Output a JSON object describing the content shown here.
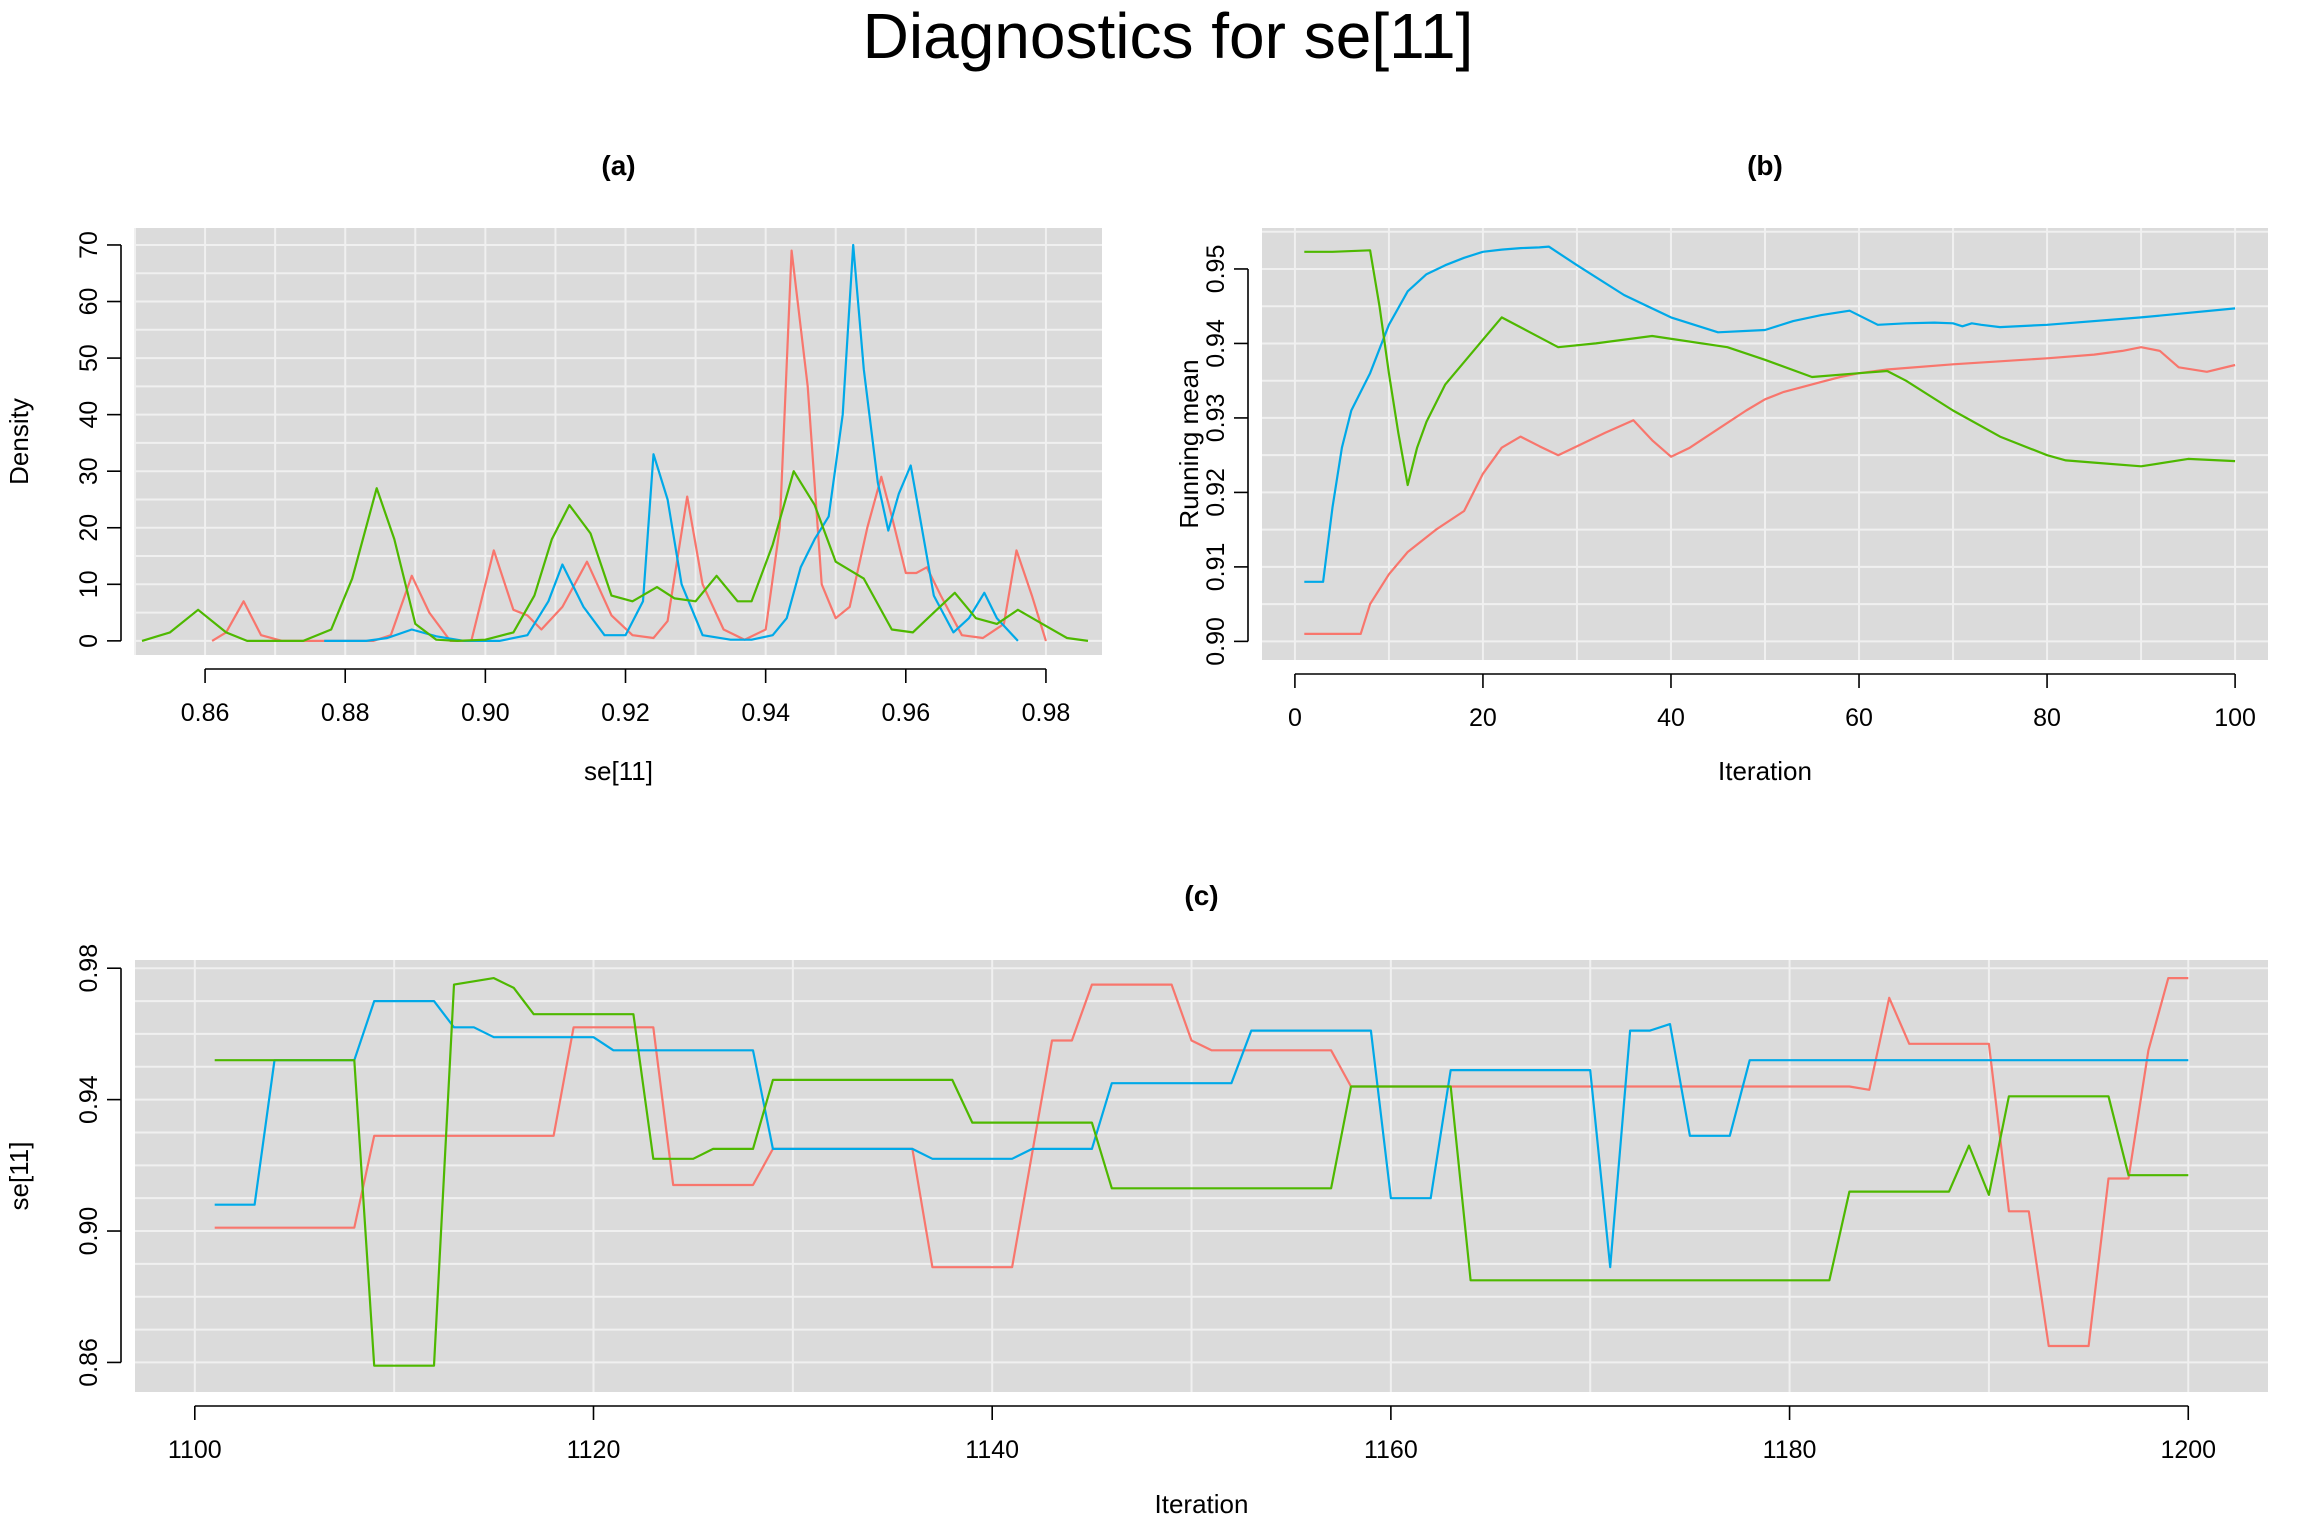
{
  "title": "Diagnostics for se[11]",
  "colors": {
    "chain1": "#F8766D",
    "chain2": "#00A9E8",
    "chain3": "#4EB800",
    "panel_bg": "#DBDBDB",
    "grid": "#F0F0F0"
  },
  "chart_data": [
    {
      "id": "a",
      "type": "line",
      "title": "(a)",
      "xlabel": "se[11]",
      "ylabel": "Density",
      "xlim": [
        0.85,
        0.988
      ],
      "ylim": [
        -2.5,
        73
      ],
      "xticks": [
        0.86,
        0.88,
        0.9,
        0.92,
        0.94,
        0.96,
        0.98
      ],
      "xtick_labels": [
        "0.86",
        "0.88",
        "0.90",
        "0.92",
        "0.94",
        "0.96",
        "0.98"
      ],
      "yticks": [
        0,
        10,
        20,
        30,
        40,
        50,
        60,
        70
      ],
      "ytick_labels": [
        "0",
        "10",
        "20",
        "30",
        "40",
        "50",
        "60",
        "70"
      ],
      "series": [
        {
          "color": "#F8766D",
          "x": [
            0.861,
            0.863,
            0.8655,
            0.868,
            0.871,
            0.875,
            0.88,
            0.884,
            0.8865,
            0.8895,
            0.892,
            0.895,
            0.898,
            0.9012,
            0.904,
            0.906,
            0.908,
            0.911,
            0.9145,
            0.918,
            0.921,
            0.924,
            0.926,
            0.9288,
            0.931,
            0.934,
            0.937,
            0.94,
            0.942,
            0.9437,
            0.946,
            0.948,
            0.95,
            0.952,
            0.9545,
            0.9565,
            0.958,
            0.96,
            0.9615,
            0.963,
            0.965,
            0.968,
            0.971,
            0.974,
            0.9758,
            0.978,
            0.98
          ],
          "y": [
            0,
            1.5,
            7,
            1,
            0,
            0,
            0,
            0,
            1,
            11.5,
            5,
            0,
            0,
            16,
            5.5,
            4.5,
            2,
            6,
            14,
            4.5,
            1,
            0.5,
            3.5,
            25.5,
            10,
            2,
            0.2,
            2,
            20,
            69,
            45,
            10,
            4,
            6,
            20,
            29,
            22,
            12,
            12,
            13,
            8,
            1,
            0.5,
            3,
            16,
            8,
            0
          ]
        },
        {
          "color": "#00A9E8",
          "x": [
            0.877,
            0.883,
            0.886,
            0.8895,
            0.893,
            0.897,
            0.902,
            0.906,
            0.909,
            0.911,
            0.914,
            0.917,
            0.92,
            0.9225,
            0.924,
            0.926,
            0.928,
            0.931,
            0.935,
            0.938,
            0.941,
            0.943,
            0.945,
            0.947,
            0.949,
            0.951,
            0.9525,
            0.954,
            0.956,
            0.9575,
            0.959,
            0.9607,
            0.962,
            0.964,
            0.9668,
            0.969,
            0.9712,
            0.973,
            0.976
          ],
          "y": [
            0,
            0,
            0.5,
            2,
            0.8,
            0,
            0,
            1,
            7,
            13.5,
            6,
            1,
            1,
            7,
            33,
            25,
            10,
            1,
            0.2,
            0.2,
            1,
            4,
            13,
            18,
            22,
            40,
            70,
            48,
            28,
            19.5,
            26,
            31,
            22,
            8,
            1.5,
            4,
            8.5,
            4,
            0
          ]
        },
        {
          "color": "#4EB800",
          "x": [
            0.851,
            0.855,
            0.859,
            0.863,
            0.866,
            0.87,
            0.874,
            0.878,
            0.881,
            0.8845,
            0.887,
            0.89,
            0.893,
            0.896,
            0.9,
            0.904,
            0.907,
            0.9095,
            0.912,
            0.915,
            0.918,
            0.921,
            0.9245,
            0.927,
            0.93,
            0.933,
            0.936,
            0.938,
            0.941,
            0.944,
            0.947,
            0.95,
            0.954,
            0.958,
            0.961,
            0.964,
            0.967,
            0.97,
            0.973,
            0.976,
            0.9795,
            0.983,
            0.986
          ],
          "y": [
            0,
            1.5,
            5.5,
            1.5,
            0,
            0,
            0,
            2,
            11,
            27,
            18,
            3,
            0.2,
            0,
            0.2,
            1.5,
            8,
            18,
            24,
            19,
            8,
            7,
            9.5,
            7.5,
            7,
            11.5,
            7,
            7,
            17,
            30,
            24,
            14,
            11,
            2,
            1.5,
            5,
            8.5,
            4,
            3,
            5.5,
            3,
            0.5,
            0
          ]
        }
      ]
    },
    {
      "id": "b",
      "type": "line",
      "title": "(b)",
      "xlabel": "Iteration",
      "ylabel": "Running mean",
      "xlim": [
        -3.5,
        103.5
      ],
      "ylim": [
        0.8975,
        0.9555
      ],
      "xticks": [
        0,
        20,
        40,
        60,
        80,
        100
      ],
      "xtick_labels": [
        "0",
        "20",
        "40",
        "60",
        "80",
        "100"
      ],
      "yticks": [
        0.9,
        0.91,
        0.92,
        0.93,
        0.94,
        0.95
      ],
      "ytick_labels": [
        "0.90",
        "0.91",
        "0.92",
        "0.93",
        "0.94",
        "0.95"
      ],
      "series": [
        {
          "color": "#F8766D",
          "x": [
            1,
            7,
            8,
            10,
            12,
            15,
            18,
            20,
            22,
            24,
            26,
            28,
            30,
            33,
            36,
            38,
            40,
            42,
            45,
            48,
            50,
            52,
            55,
            58,
            60,
            63,
            65,
            70,
            75,
            80,
            85,
            88,
            90,
            92,
            94,
            97,
            100
          ],
          "y": [
            0.901,
            0.901,
            0.905,
            0.909,
            0.912,
            0.915,
            0.9175,
            0.9225,
            0.926,
            0.9275,
            0.9262,
            0.925,
            0.9262,
            0.928,
            0.9297,
            0.927,
            0.9248,
            0.926,
            0.9285,
            0.931,
            0.9325,
            0.9335,
            0.9345,
            0.9355,
            0.936,
            0.9365,
            0.9367,
            0.9372,
            0.9376,
            0.938,
            0.9385,
            0.939,
            0.9395,
            0.939,
            0.9368,
            0.9362,
            0.9371
          ]
        },
        {
          "color": "#00A9E8",
          "x": [
            1,
            3,
            4,
            5,
            6,
            8,
            10,
            12,
            14,
            16,
            18,
            20,
            22,
            24,
            26,
            27,
            30,
            35,
            40,
            45,
            50,
            53,
            56,
            59,
            62,
            65,
            68,
            70,
            71,
            72,
            73,
            75,
            80,
            90,
            100
          ],
          "y": [
            0.908,
            0.908,
            0.918,
            0.926,
            0.931,
            0.936,
            0.9425,
            0.947,
            0.9493,
            0.9505,
            0.9515,
            0.9523,
            0.9526,
            0.9528,
            0.9529,
            0.953,
            0.9505,
            0.9465,
            0.9435,
            0.9415,
            0.9418,
            0.943,
            0.9438,
            0.9444,
            0.9425,
            0.9427,
            0.9428,
            0.9427,
            0.9423,
            0.9427,
            0.9425,
            0.9422,
            0.9425,
            0.9435,
            0.9447
          ]
        },
        {
          "color": "#4EB800",
          "x": [
            1,
            4,
            8,
            9,
            10,
            11,
            12,
            13,
            14,
            16,
            18,
            20,
            22,
            25,
            28,
            32,
            38,
            46,
            50,
            55,
            60,
            63,
            65,
            70,
            75,
            80,
            82,
            85,
            90,
            95,
            100
          ],
          "y": [
            0.9523,
            0.9523,
            0.9525,
            0.945,
            0.936,
            0.928,
            0.921,
            0.926,
            0.9295,
            0.9345,
            0.9375,
            0.9405,
            0.9435,
            0.9415,
            0.9395,
            0.94,
            0.941,
            0.9395,
            0.9378,
            0.9355,
            0.936,
            0.9363,
            0.935,
            0.931,
            0.9275,
            0.925,
            0.9243,
            0.924,
            0.9235,
            0.9245,
            0.9242
          ]
        }
      ]
    },
    {
      "id": "c",
      "type": "line",
      "title": "(c)",
      "xlabel": "Iteration",
      "ylabel": "se[11]",
      "xlim": [
        1097,
        1204
      ],
      "ylim": [
        0.851,
        0.9825
      ],
      "xticks": [
        1100,
        1120,
        1140,
        1160,
        1180,
        1200
      ],
      "xtick_labels": [
        "1100",
        "1120",
        "1140",
        "1160",
        "1180",
        "1200"
      ],
      "yticks": [
        0.86,
        0.9,
        0.94,
        0.98
      ],
      "ytick_labels": [
        "0.86",
        "0.90",
        "0.94",
        "0.98"
      ],
      "series": [
        {
          "color": "#F8766D",
          "x": [
            1101,
            1108,
            1109,
            1115,
            1118,
            1119,
            1122,
            1123,
            1124,
            1128,
            1129,
            1136,
            1137,
            1141,
            1143,
            1144,
            1145,
            1149,
            1150,
            1151,
            1157,
            1158,
            1183,
            1184,
            1185,
            1186,
            1190,
            1191,
            1192,
            1193,
            1195,
            1196,
            1197,
            1198,
            1199,
            1200
          ],
          "y": [
            0.901,
            0.901,
            0.929,
            0.929,
            0.929,
            0.962,
            0.962,
            0.962,
            0.914,
            0.914,
            0.925,
            0.925,
            0.889,
            0.889,
            0.958,
            0.958,
            0.975,
            0.975,
            0.958,
            0.955,
            0.955,
            0.944,
            0.944,
            0.943,
            0.971,
            0.957,
            0.957,
            0.906,
            0.906,
            0.865,
            0.865,
            0.916,
            0.916,
            0.955,
            0.977,
            0.977
          ]
        },
        {
          "color": "#00A9E8",
          "x": [
            1101,
            1103,
            1104,
            1108,
            1109,
            1112,
            1113,
            1114,
            1115,
            1120,
            1121,
            1128,
            1129,
            1136,
            1137,
            1141,
            1142,
            1145,
            1146,
            1152,
            1153,
            1159,
            1160,
            1162,
            1163,
            1170,
            1171,
            1172,
            1173,
            1174,
            1175,
            1177,
            1178,
            1200
          ],
          "y": [
            0.908,
            0.908,
            0.952,
            0.952,
            0.97,
            0.97,
            0.962,
            0.962,
            0.959,
            0.959,
            0.955,
            0.955,
            0.925,
            0.925,
            0.922,
            0.922,
            0.925,
            0.925,
            0.945,
            0.945,
            0.961,
            0.961,
            0.91,
            0.91,
            0.949,
            0.949,
            0.889,
            0.961,
            0.961,
            0.963,
            0.929,
            0.929,
            0.952,
            0.952
          ]
        },
        {
          "color": "#4EB800",
          "x": [
            1101,
            1108,
            1109,
            1112,
            1113,
            1115,
            1116,
            1117,
            1118,
            1122,
            1123,
            1125,
            1126,
            1128,
            1129,
            1138,
            1139,
            1145,
            1146,
            1150,
            1151,
            1157,
            1158,
            1163,
            1164,
            1182,
            1183,
            1188,
            1189,
            1190,
            1191,
            1196,
            1197,
            1198,
            1200
          ],
          "y": [
            0.952,
            0.952,
            0.859,
            0.859,
            0.975,
            0.977,
            0.974,
            0.966,
            0.966,
            0.966,
            0.922,
            0.922,
            0.925,
            0.925,
            0.946,
            0.946,
            0.933,
            0.933,
            0.913,
            0.913,
            0.913,
            0.913,
            0.944,
            0.944,
            0.885,
            0.885,
            0.912,
            0.912,
            0.926,
            0.911,
            0.941,
            0.941,
            0.917,
            0.917,
            0.917
          ]
        }
      ]
    }
  ]
}
